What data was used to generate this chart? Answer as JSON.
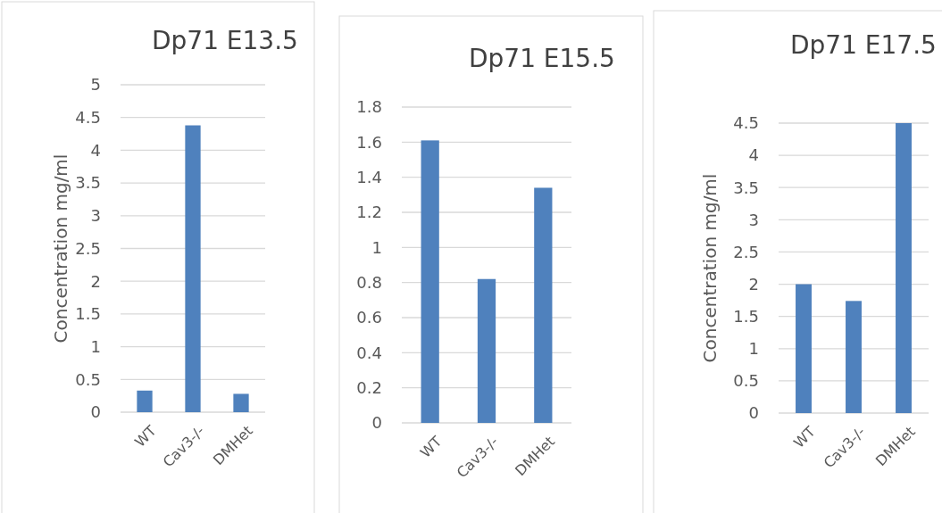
{
  "chart_data": [
    {
      "type": "bar",
      "title": "Dp71 E13.5",
      "ylabel": "Concentration mg/ml",
      "categories": [
        "WT",
        "Cav3-/-",
        "DMHet"
      ],
      "values": [
        0.33,
        4.38,
        0.28
      ],
      "color": "#4f81bd",
      "ylim": [
        0,
        5
      ],
      "yticks": [
        0,
        0.5,
        1,
        1.5,
        2,
        2.5,
        3,
        3.5,
        4,
        4.5,
        5
      ],
      "grid": "y"
    },
    {
      "type": "bar",
      "title": "Dp71 E15.5",
      "categories": [
        "WT",
        "Cav3-/-",
        "DMHet"
      ],
      "values": [
        1.61,
        0.82,
        1.34
      ],
      "color": "#4f81bd",
      "ylim": [
        0,
        1.8
      ],
      "yticks": [
        0,
        0.2,
        0.4,
        0.6,
        0.8,
        1,
        1.2,
        1.4,
        1.6,
        1.8
      ],
      "grid": "y"
    },
    {
      "type": "bar",
      "title": "Dp71 E17.5",
      "ylabel": "Concentration mg/ml",
      "categories": [
        "WT",
        "Cav3-/-",
        "DMHet"
      ],
      "values": [
        2.0,
        1.74,
        4.5
      ],
      "color": "#4f81bd",
      "ylim": [
        0,
        4.5
      ],
      "yticks": [
        0,
        0.5,
        1,
        1.5,
        2,
        2.5,
        3,
        3.5,
        4,
        4.5
      ],
      "grid": "y"
    }
  ]
}
